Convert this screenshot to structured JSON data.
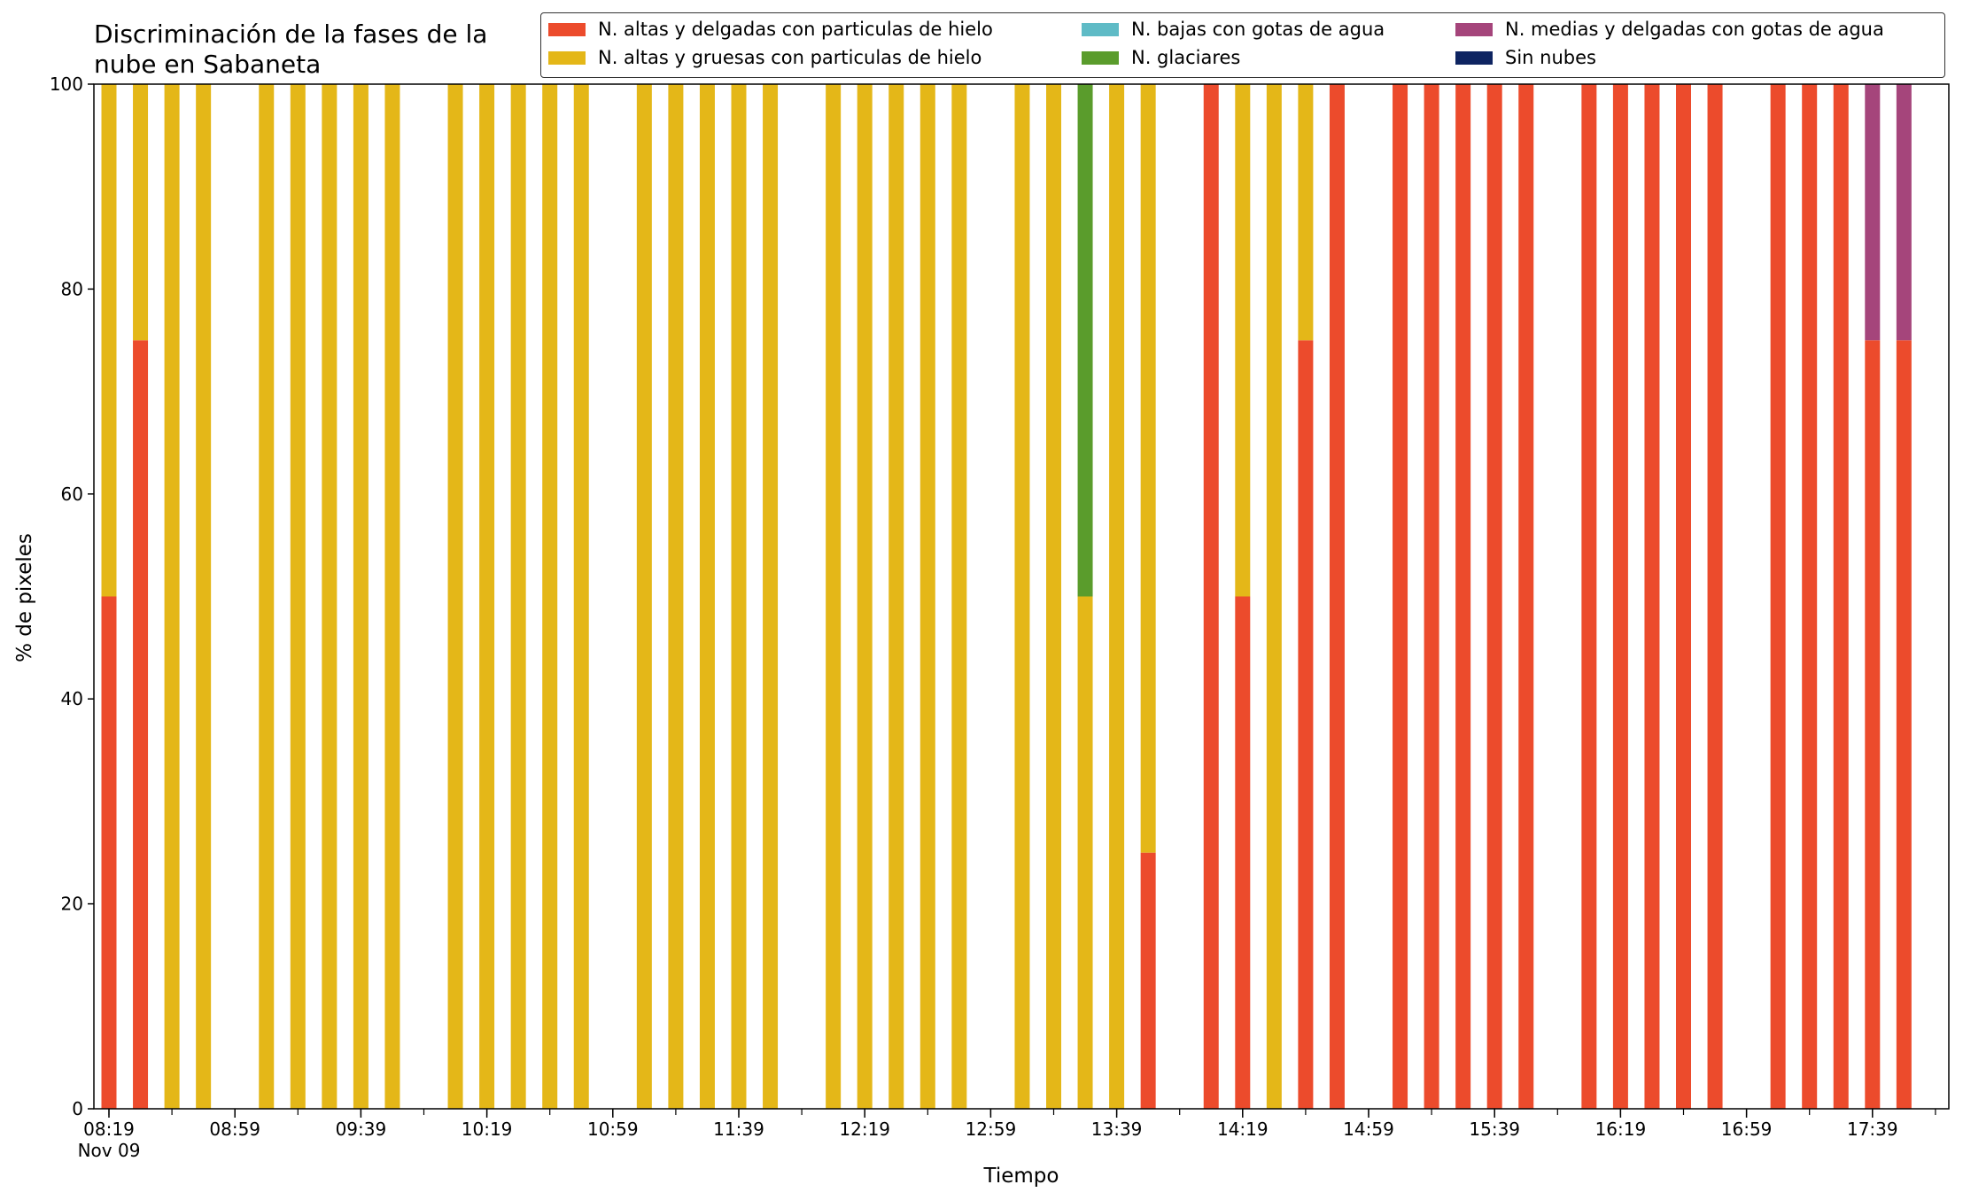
{
  "chart_data": {
    "type": "bar",
    "stacked": true,
    "title": [
      "Discriminación de la fases de la",
      "nube en Sabaneta"
    ],
    "xlabel": "Tiempo",
    "ylabel": "% de pixeles",
    "ylim": [
      0,
      100
    ],
    "yticks": [
      0,
      20,
      40,
      60,
      80,
      100
    ],
    "x_start": "08:19",
    "x_end": "18:14",
    "x_step_minutes": 10,
    "x_tick_labels": [
      "08:19",
      "08:59",
      "09:39",
      "10:19",
      "10:59",
      "11:39",
      "12:19",
      "12:59",
      "13:39",
      "14:19",
      "14:59",
      "15:39",
      "16:19",
      "16:59",
      "17:39"
    ],
    "x_date_label": "Nov 09",
    "legend_position": "top-right",
    "categories": [
      "08:19",
      "08:29",
      "08:39",
      "08:49",
      "08:59",
      "09:09",
      "09:19",
      "09:29",
      "09:39",
      "09:49",
      "09:59",
      "10:09",
      "10:19",
      "10:29",
      "10:39",
      "10:49",
      "10:59",
      "11:09",
      "11:19",
      "11:29",
      "11:39",
      "11:49",
      "11:59",
      "12:09",
      "12:19",
      "12:29",
      "12:39",
      "12:49",
      "12:59",
      "13:09",
      "13:19",
      "13:29",
      "13:39",
      "13:49",
      "13:59",
      "14:09",
      "14:19",
      "14:29",
      "14:39",
      "14:49",
      "14:59",
      "15:09",
      "15:19",
      "15:29",
      "15:39",
      "15:49",
      "15:59",
      "16:09",
      "16:19",
      "16:29",
      "16:39",
      "16:49",
      "16:59",
      "17:09",
      "17:19",
      "17:29",
      "17:39",
      "17:49"
    ],
    "series": [
      {
        "name": "N. altas y delgadas con particulas de hielo",
        "color": "#ec4b2c",
        "values": [
          50,
          75,
          0,
          0,
          0,
          0,
          0,
          0,
          0,
          0,
          0,
          0,
          0,
          0,
          0,
          0,
          0,
          0,
          0,
          0,
          0,
          0,
          0,
          0,
          0,
          0,
          0,
          0,
          0,
          0,
          0,
          0,
          0,
          25,
          0,
          100,
          50,
          0,
          75,
          100,
          0,
          100,
          100,
          100,
          100,
          100,
          0,
          100,
          100,
          100,
          100,
          100,
          0,
          100,
          100,
          100,
          75,
          75
        ]
      },
      {
        "name": "N. altas y gruesas con particulas de hielo",
        "color": "#e4b718",
        "values": [
          50,
          25,
          100,
          100,
          0,
          100,
          100,
          100,
          100,
          100,
          0,
          100,
          100,
          100,
          100,
          100,
          0,
          100,
          100,
          100,
          100,
          100,
          0,
          100,
          100,
          100,
          100,
          100,
          0,
          100,
          100,
          50,
          100,
          75,
          0,
          0,
          50,
          100,
          25,
          0,
          0,
          0,
          0,
          0,
          0,
          0,
          0,
          0,
          0,
          0,
          0,
          0,
          0,
          0,
          0,
          0,
          0,
          0
        ]
      },
      {
        "name": "N. bajas con gotas de agua",
        "color": "#5fbbc6",
        "values": [
          0,
          0,
          0,
          0,
          0,
          0,
          0,
          0,
          0,
          0,
          0,
          0,
          0,
          0,
          0,
          0,
          0,
          0,
          0,
          0,
          0,
          0,
          0,
          0,
          0,
          0,
          0,
          0,
          0,
          0,
          0,
          0,
          0,
          0,
          0,
          0,
          0,
          0,
          0,
          0,
          0,
          0,
          0,
          0,
          0,
          0,
          0,
          0,
          0,
          0,
          0,
          0,
          0,
          0,
          0,
          0,
          0,
          0
        ]
      },
      {
        "name": "N. glaciares",
        "color": "#5a9c2c",
        "values": [
          0,
          0,
          0,
          0,
          0,
          0,
          0,
          0,
          0,
          0,
          0,
          0,
          0,
          0,
          0,
          0,
          0,
          0,
          0,
          0,
          0,
          0,
          0,
          0,
          0,
          0,
          0,
          0,
          0,
          0,
          0,
          50,
          0,
          0,
          0,
          0,
          0,
          0,
          0,
          0,
          0,
          0,
          0,
          0,
          0,
          0,
          0,
          0,
          0,
          0,
          0,
          0,
          0,
          0,
          0,
          0,
          0,
          0
        ]
      },
      {
        "name": "N. medias y delgadas con gotas de agua",
        "color": "#a5457b",
        "values": [
          0,
          0,
          0,
          0,
          0,
          0,
          0,
          0,
          0,
          0,
          0,
          0,
          0,
          0,
          0,
          0,
          0,
          0,
          0,
          0,
          0,
          0,
          0,
          0,
          0,
          0,
          0,
          0,
          0,
          0,
          0,
          0,
          0,
          0,
          0,
          0,
          0,
          0,
          0,
          0,
          0,
          0,
          0,
          0,
          0,
          0,
          0,
          0,
          0,
          0,
          0,
          0,
          0,
          0,
          0,
          0,
          25,
          25
        ]
      },
      {
        "name": "Sin nubes",
        "color": "#0e2461",
        "values": [
          0,
          0,
          0,
          0,
          0,
          0,
          0,
          0,
          0,
          0,
          0,
          0,
          0,
          0,
          0,
          0,
          0,
          0,
          0,
          0,
          0,
          0,
          0,
          0,
          0,
          0,
          0,
          0,
          0,
          0,
          0,
          0,
          0,
          0,
          0,
          0,
          0,
          0,
          0,
          0,
          0,
          0,
          0,
          0,
          0,
          0,
          0,
          0,
          0,
          0,
          0,
          0,
          0,
          0,
          0,
          0,
          0,
          0
        ]
      }
    ]
  }
}
